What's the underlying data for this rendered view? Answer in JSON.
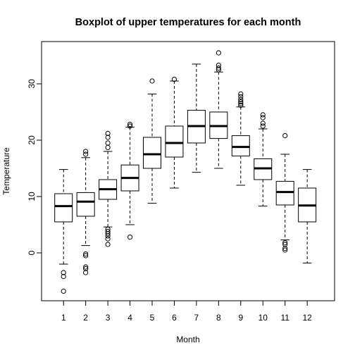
{
  "chart_data": {
    "type": "boxplot",
    "title": "Boxplot of upper temperatures for each month",
    "xlabel": "Month",
    "ylabel": "Temperature",
    "ylim": [
      -8.5,
      37.5
    ],
    "y_ticks": [
      0,
      10,
      20,
      30
    ],
    "categories": [
      "1",
      "2",
      "3",
      "4",
      "5",
      "6",
      "7",
      "8",
      "9",
      "10",
      "11",
      "12"
    ],
    "boxes": [
      {
        "label": "1",
        "whisker_low": -2.0,
        "q1": 5.5,
        "median": 8.3,
        "q3": 10.5,
        "whisker_high": 14.8,
        "outliers": [
          -3.5,
          -4.2,
          -6.8
        ]
      },
      {
        "label": "2",
        "whisker_low": 1.3,
        "q1": 6.5,
        "median": 9.1,
        "q3": 10.7,
        "whisker_high": 16.9,
        "outliers": [
          17.5,
          18.0,
          -0.2,
          -0.5,
          -2.5,
          -2.8,
          -3.5
        ]
      },
      {
        "label": "3",
        "whisker_low": 4.6,
        "q1": 9.5,
        "median": 11.3,
        "q3": 13.0,
        "whisker_high": 18.0,
        "outliers": [
          18.7,
          19.5,
          20.5,
          21.2,
          4.2,
          3.8,
          3.4,
          3.0,
          2.5,
          1.5
        ]
      },
      {
        "label": "4",
        "whisker_low": 5.0,
        "q1": 11.0,
        "median": 13.3,
        "q3": 15.6,
        "whisker_high": 22.3,
        "outliers": [
          22.8,
          22.5,
          2.8
        ]
      },
      {
        "label": "5",
        "whisker_low": 8.8,
        "q1": 15.0,
        "median": 17.5,
        "q3": 20.5,
        "whisker_high": 28.2,
        "outliers": [
          30.5
        ]
      },
      {
        "label": "6",
        "whisker_low": 11.5,
        "q1": 17.0,
        "median": 19.5,
        "q3": 22.5,
        "whisker_high": 30.5,
        "outliers": [
          30.8
        ]
      },
      {
        "label": "7",
        "whisker_low": 14.3,
        "q1": 19.5,
        "median": 22.5,
        "q3": 25.3,
        "whisker_high": 33.5,
        "outliers": []
      },
      {
        "label": "8",
        "whisker_low": 15.0,
        "q1": 20.3,
        "median": 22.5,
        "q3": 25.0,
        "whisker_high": 32.1,
        "outliers": [
          32.5,
          32.8,
          33.3,
          35.5
        ]
      },
      {
        "label": "9",
        "whisker_low": 12.0,
        "q1": 17.2,
        "median": 18.8,
        "q3": 20.8,
        "whisker_high": 25.9,
        "outliers": [
          26.2,
          26.5,
          26.8,
          27.2,
          27.7,
          28.2
        ]
      },
      {
        "label": "10",
        "whisker_low": 8.3,
        "q1": 13.0,
        "median": 15.0,
        "q3": 16.7,
        "whisker_high": 22.0,
        "outliers": [
          22.5,
          23.0,
          24.0,
          24.5
        ]
      },
      {
        "label": "11",
        "whisker_low": 2.3,
        "q1": 8.5,
        "median": 10.8,
        "q3": 12.7,
        "whisker_high": 17.5,
        "outliers": [
          20.8,
          1.8,
          1.5,
          0.8,
          0.5
        ]
      },
      {
        "label": "12",
        "whisker_low": -1.8,
        "q1": 5.5,
        "median": 8.4,
        "q3": 11.5,
        "whisker_high": 14.8,
        "outliers": []
      }
    ]
  }
}
